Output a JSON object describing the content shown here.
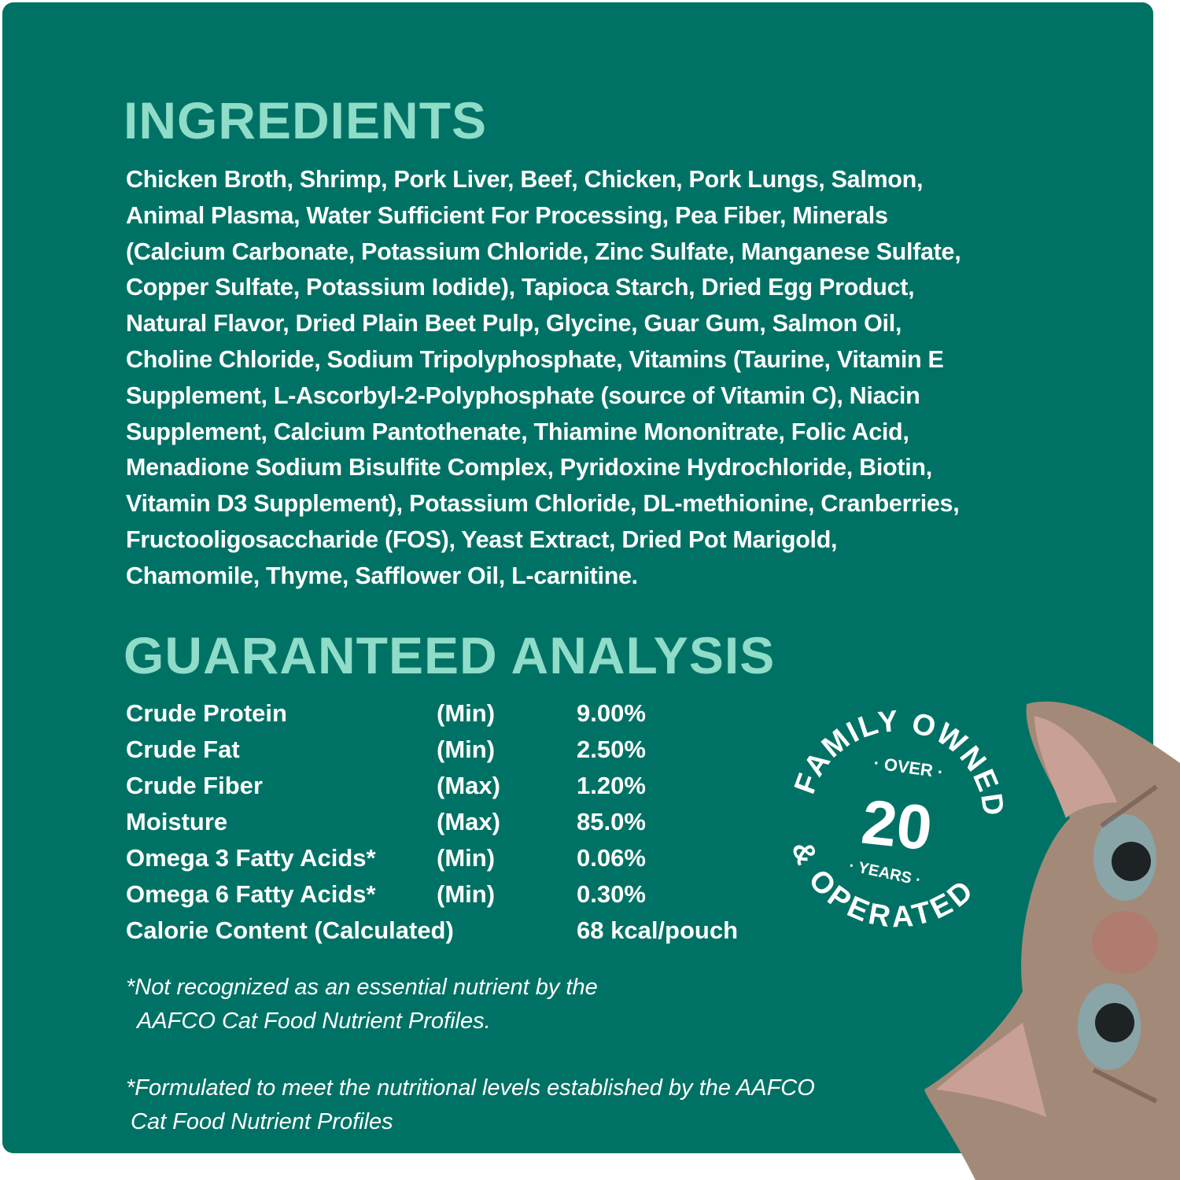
{
  "colors": {
    "background": "#007265",
    "heading": "#8fdcc8",
    "text": "#ffffff"
  },
  "ingredients": {
    "title": "INGREDIENTS",
    "lines": [
      "Chicken Broth, Shrimp, Pork Liver, Beef, Chicken, Pork Lungs, Salmon,",
      "Animal Plasma, Water Sufficient For Processing, Pea Fiber, Minerals",
      "(Calcium Carbonate, Potassium Chloride, Zinc Sulfate, Manganese Sulfate,",
      "Copper Sulfate, Potassium Iodide), Tapioca Starch, Dried Egg Product,",
      "Natural Flavor, Dried Plain Beet Pulp, Glycine, Guar Gum, Salmon Oil,",
      "Choline Chloride, Sodium Tripolyphosphate, Vitamins (Taurine, Vitamin E",
      "Supplement, L-Ascorbyl-2-Polyphosphate (source of Vitamin C), Niacin",
      "Supplement, Calcium Pantothenate, Thiamine Mononitrate, Folic Acid,",
      "Menadione Sodium Bisulfite Complex, Pyridoxine Hydrochloride, Biotin,",
      "Vitamin D3 Supplement), Potassium Chloride, DL-methionine, Cranberries,",
      "Fructooligosaccharide (FOS), Yeast Extract, Dried Pot Marigold,",
      "Chamomile, Thyme, Safflower Oil, L-carnitine."
    ]
  },
  "analysis": {
    "title": "GUARANTEED ANALYSIS",
    "rows": [
      {
        "nutrient": "Crude Protein",
        "qualifier": "(Min)",
        "value": "9.00%"
      },
      {
        "nutrient": "Crude Fat",
        "qualifier": "(Min)",
        "value": "2.50%"
      },
      {
        "nutrient": "Crude Fiber",
        "qualifier": "(Max)",
        "value": "1.20%"
      },
      {
        "nutrient": "Moisture",
        "qualifier": "(Max)",
        "value": "85.0%"
      },
      {
        "nutrient": "Omega 3 Fatty Acids*",
        "qualifier": "(Min)",
        "value": "0.06%"
      },
      {
        "nutrient": "Omega 6 Fatty Acids*",
        "qualifier": "(Min)",
        "value": "0.30%"
      },
      {
        "nutrient": "Calorie Content (Calculated)",
        "qualifier": "",
        "value": "68 kcal/pouch"
      }
    ]
  },
  "notes": {
    "note1": [
      "*Not recognized as an essential nutrient by the",
      "AAFCO Cat Food Nutrient Profiles."
    ],
    "note2": [
      "*Formulated to meet the nutritional levels established by the AAFCO",
      "Cat Food Nutrient Profiles"
    ]
  },
  "badge": {
    "top_arc": "FAMILY OWNED",
    "bottom_arc": "& OPERATED",
    "over": "· OVER ·",
    "number": "20",
    "years": "· YEARS ·"
  }
}
